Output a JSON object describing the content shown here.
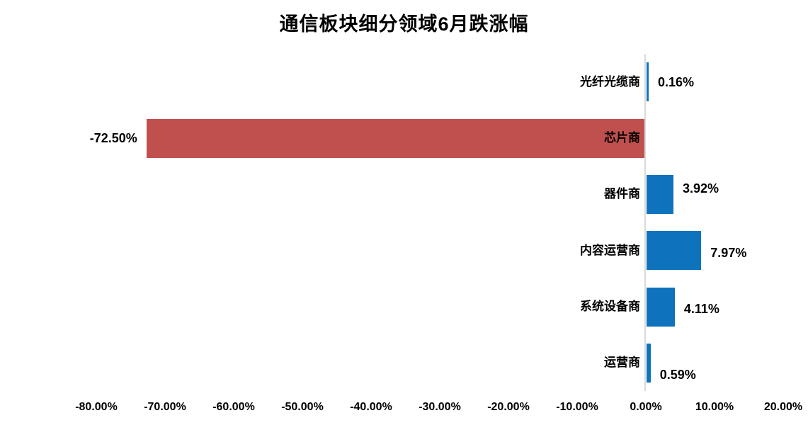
{
  "chart_data": {
    "type": "bar",
    "orientation": "horizontal",
    "title": "通信板块细分领域6月跌涨幅",
    "categories": [
      "光纤光缆商",
      "芯片商",
      "器件商",
      "内容运营商",
      "系统设备商",
      "运营商"
    ],
    "values": [
      0.16,
      -72.5,
      3.92,
      7.97,
      4.11,
      0.59
    ],
    "value_labels": [
      "0.16%",
      "-72.50%",
      "3.92%",
      "7.97%",
      "4.11%",
      "0.59%"
    ],
    "x_tick_labels": [
      "-80.00%",
      "-70.00%",
      "-60.00%",
      "-50.00%",
      "-40.00%",
      "-30.00%",
      "-20.00%",
      "-10.00%",
      "0.00%",
      "10.00%",
      "20.00%"
    ],
    "x_tick_values": [
      -80,
      -70,
      -60,
      -50,
      -40,
      -30,
      -20,
      -10,
      0,
      10,
      20
    ],
    "xlim": [
      -80,
      20
    ],
    "grid": false,
    "legend": false,
    "data_label_position": "outside-end",
    "positive_color": "#0E73BC",
    "negative_color": "#C0504D",
    "axis_line_color": "#D9D9D9",
    "text_color": "#000000",
    "background_color": "#FFFFFF"
  }
}
